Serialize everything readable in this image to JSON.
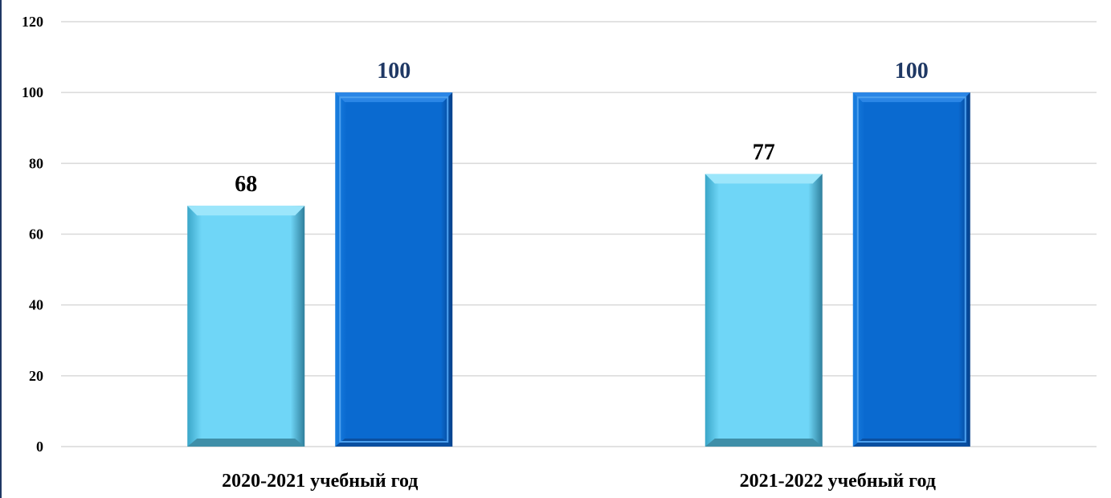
{
  "chart_data": {
    "type": "bar",
    "title": "",
    "xlabel": "",
    "ylabel": "",
    "ylim": [
      0,
      120
    ],
    "yticks": [
      "0",
      "20",
      "40",
      "60",
      "80",
      "100",
      "120"
    ],
    "grid": true,
    "legend": "none",
    "categories": [
      "2020-2021 учебный год",
      "2021-2022 учебный год"
    ],
    "series": [
      {
        "values": [
          68,
          77
        ],
        "color": "#6fd6f7",
        "label_color": "#000000"
      },
      {
        "values": [
          100,
          100
        ],
        "color": "#0a6ad0",
        "label_color": "#1f3864"
      }
    ],
    "data_labels": [
      "68",
      "100",
      "77",
      "100"
    ]
  }
}
